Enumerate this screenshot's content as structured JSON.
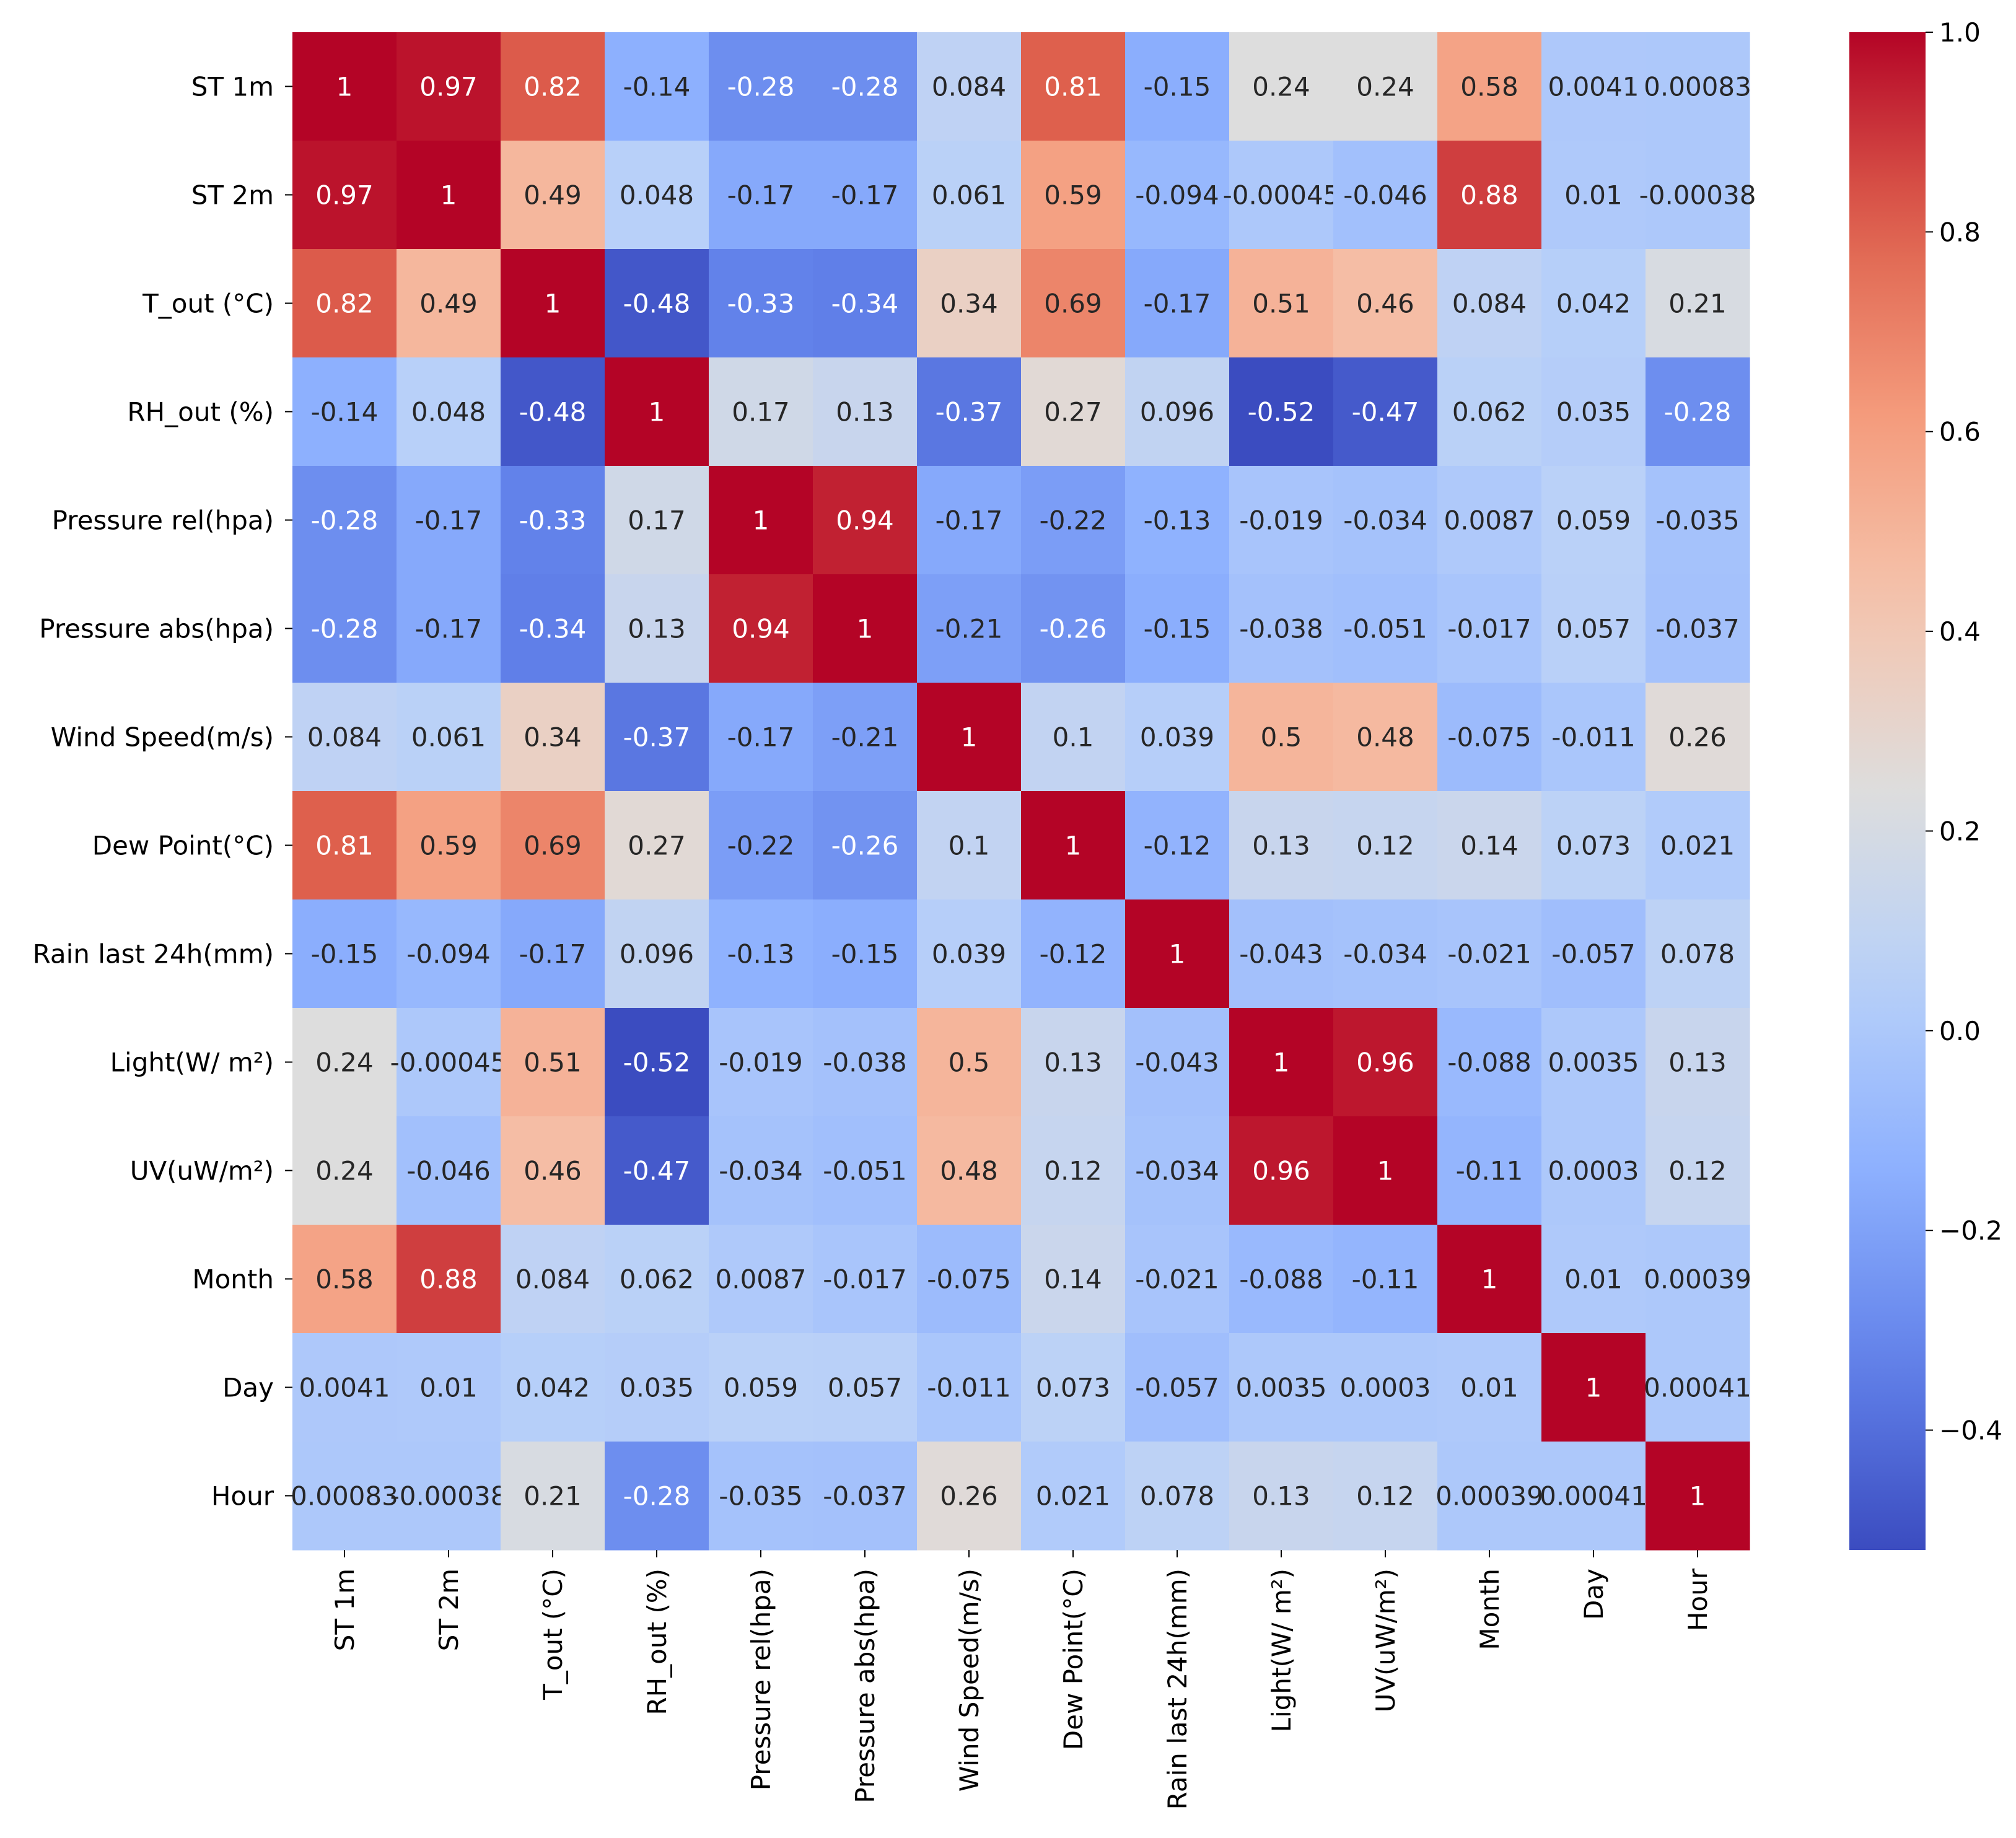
{
  "chart_data": {
    "type": "heatmap",
    "title": "",
    "xlabel": "",
    "ylabel": "",
    "labels": [
      "ST 1m",
      "ST 2m",
      "T_out (°C)",
      "RH_out (%)",
      "Pressure rel(hpa)",
      "Pressure abs(hpa)",
      "Wind Speed(m/s)",
      "Dew Point(°C)",
      "Rain last 24h(mm)",
      "Light(W/ m²)",
      "UV(uW/m²)",
      "Month",
      "Day",
      "Hour"
    ],
    "matrix": [
      [
        "1",
        "0.97",
        "0.82",
        "-0.14",
        "-0.28",
        "-0.28",
        "0.084",
        "0.81",
        "-0.15",
        "0.24",
        "0.24",
        "0.58",
        "0.0041",
        "0.00083"
      ],
      [
        "0.97",
        "1",
        "0.49",
        "0.048",
        "-0.17",
        "-0.17",
        "0.061",
        "0.59",
        "-0.094",
        "-0.00045",
        "-0.046",
        "0.88",
        "0.01",
        "-0.00038"
      ],
      [
        "0.82",
        "0.49",
        "1",
        "-0.48",
        "-0.33",
        "-0.34",
        "0.34",
        "0.69",
        "-0.17",
        "0.51",
        "0.46",
        "0.084",
        "0.042",
        "0.21"
      ],
      [
        "-0.14",
        "0.048",
        "-0.48",
        "1",
        "0.17",
        "0.13",
        "-0.37",
        "0.27",
        "0.096",
        "-0.52",
        "-0.47",
        "0.062",
        "0.035",
        "-0.28"
      ],
      [
        "-0.28",
        "-0.17",
        "-0.33",
        "0.17",
        "1",
        "0.94",
        "-0.17",
        "-0.22",
        "-0.13",
        "-0.019",
        "-0.034",
        "0.0087",
        "0.059",
        "-0.035"
      ],
      [
        "-0.28",
        "-0.17",
        "-0.34",
        "0.13",
        "0.94",
        "1",
        "-0.21",
        "-0.26",
        "-0.15",
        "-0.038",
        "-0.051",
        "-0.017",
        "0.057",
        "-0.037"
      ],
      [
        "0.084",
        "0.061",
        "0.34",
        "-0.37",
        "-0.17",
        "-0.21",
        "1",
        "0.1",
        "0.039",
        "0.5",
        "0.48",
        "-0.075",
        "-0.011",
        "0.26"
      ],
      [
        "0.81",
        "0.59",
        "0.69",
        "0.27",
        "-0.22",
        "-0.26",
        "0.1",
        "1",
        "-0.12",
        "0.13",
        "0.12",
        "0.14",
        "0.073",
        "0.021"
      ],
      [
        "-0.15",
        "-0.094",
        "-0.17",
        "0.096",
        "-0.13",
        "-0.15",
        "0.039",
        "-0.12",
        "1",
        "-0.043",
        "-0.034",
        "-0.021",
        "-0.057",
        "0.078"
      ],
      [
        "0.24",
        "-0.00045",
        "0.51",
        "-0.52",
        "-0.019",
        "-0.038",
        "0.5",
        "0.13",
        "-0.043",
        "1",
        "0.96",
        "-0.088",
        "0.0035",
        "0.13"
      ],
      [
        "0.24",
        "-0.046",
        "0.46",
        "-0.47",
        "-0.034",
        "-0.051",
        "0.48",
        "0.12",
        "-0.034",
        "0.96",
        "1",
        "-0.11",
        "0.0003",
        "0.12"
      ],
      [
        "0.58",
        "0.88",
        "0.084",
        "0.062",
        "0.0087",
        "-0.017",
        "-0.075",
        "0.14",
        "-0.021",
        "-0.088",
        "-0.11",
        "1",
        "0.01",
        "0.00039"
      ],
      [
        "0.0041",
        "0.01",
        "0.042",
        "0.035",
        "0.059",
        "0.057",
        "-0.011",
        "0.073",
        "-0.057",
        "0.0035",
        "0.0003",
        "0.01",
        "1",
        "0.00041"
      ],
      [
        "0.00083",
        "-0.00038",
        "0.21",
        "-0.28",
        "-0.035",
        "-0.037",
        "0.26",
        "0.021",
        "0.078",
        "0.13",
        "0.12",
        "0.00039",
        "0.00041",
        "1"
      ]
    ],
    "colorbar": {
      "colormap": "coolwarm",
      "vmin": -0.52,
      "vmax": 1.0,
      "ticks": [
        "1.0",
        "0.8",
        "0.6",
        "0.4",
        "0.2",
        "0.0",
        "−0.2",
        "−0.4"
      ]
    }
  }
}
